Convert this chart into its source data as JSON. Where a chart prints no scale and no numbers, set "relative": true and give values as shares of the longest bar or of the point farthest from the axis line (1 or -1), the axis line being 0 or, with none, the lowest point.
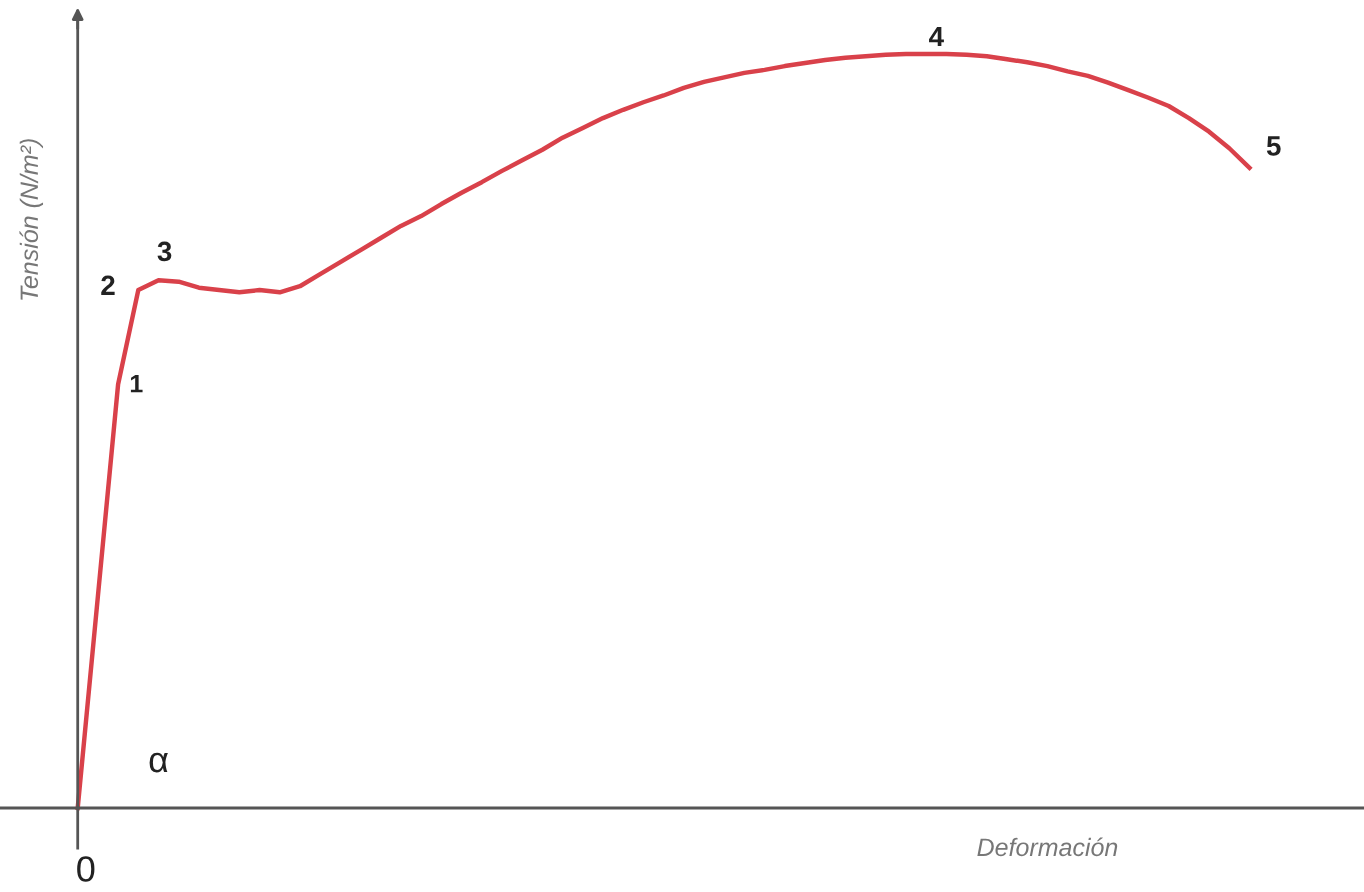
{
  "chart_data": {
    "type": "line",
    "relative": true,
    "xlabel": "Deformación",
    "ylabel": "Tensión (N/m²)",
    "categories": [
      null,
      null,
      null,
      null,
      null,
      null,
      null,
      null,
      null,
      null,
      null,
      null,
      null,
      null,
      null,
      null,
      null,
      null,
      null,
      null,
      null,
      null,
      null,
      null,
      null,
      null,
      null,
      null,
      null,
      null,
      null,
      null,
      null,
      null,
      null,
      null,
      null,
      null,
      null,
      null,
      null,
      null,
      null,
      null,
      null,
      null,
      null,
      null,
      null,
      null,
      null,
      null,
      null,
      null,
      null,
      null,
      null,
      null,
      null
    ],
    "series": [
      {
        "color": "#d9414a",
        "values": [
          0,
          0.281,
          0.562,
          0.687,
          0.7,
          0.698,
          0.69,
          0.687,
          0.684,
          0.687,
          0.684,
          0.692,
          0.708,
          0.724,
          0.74,
          0.756,
          0.772,
          0.785,
          0.801,
          0.816,
          0.83,
          0.845,
          0.859,
          0.873,
          0.889,
          0.902,
          0.915,
          0.926,
          0.936,
          0.945,
          0.955,
          0.963,
          0.969,
          0.975,
          0.979,
          0.984,
          0.988,
          0.992,
          0.995,
          0.997,
          0.999,
          1,
          1,
          1,
          0.999,
          0.997,
          0.993,
          0.989,
          0.984,
          0.977,
          0.971,
          0.962,
          0.952,
          0.942,
          0.931,
          0.915,
          0.897,
          0.875,
          0.849
        ]
      }
    ],
    "annotations": [
      "0",
      "1",
      "2",
      "3",
      "4",
      "5",
      "α"
    ],
    "legend": false,
    "marker": "none",
    "line_style": "solid"
  }
}
